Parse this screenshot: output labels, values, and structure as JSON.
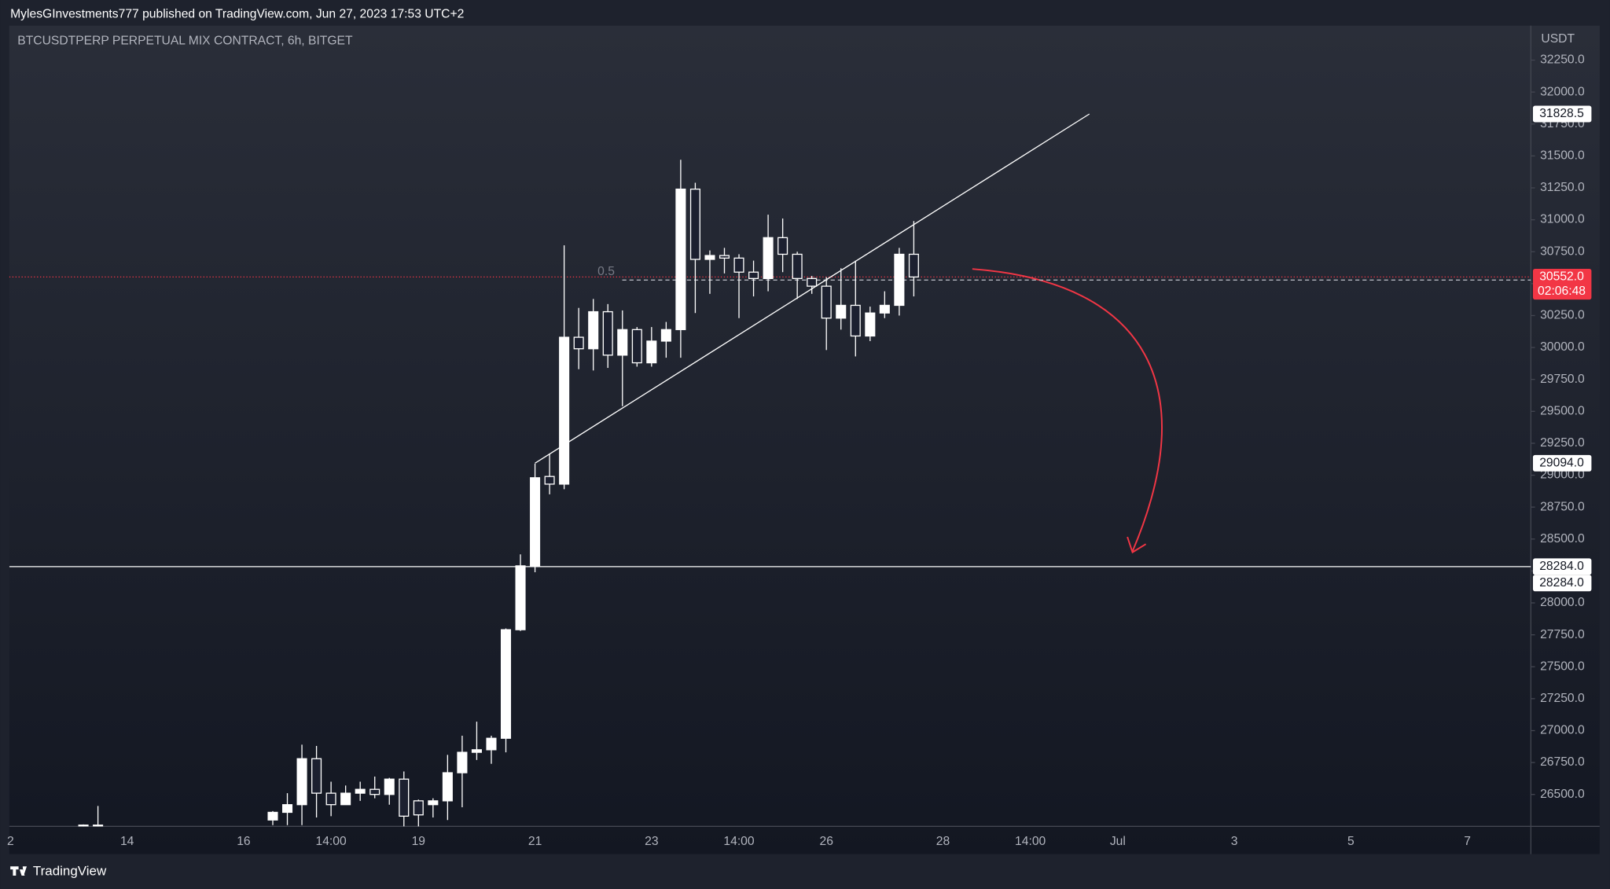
{
  "header": "MylesGInvestments777 published on TradingView.com, Jun 27, 2023 17:53 UTC+2",
  "footer": "TradingView",
  "chart_data": {
    "type": "candlestick",
    "title": "BTCUSDTPERP PERPETUAL MIX CONTRACT, 6h, BITGET",
    "currency": "USDT",
    "color": "#ffffff",
    "categories": [
      "2",
      null,
      null,
      null,
      null,
      null,
      null,
      null,
      "14",
      null,
      null,
      null,
      null,
      null,
      null,
      null,
      "16",
      null,
      null,
      null,
      null,
      null,
      "14:00",
      null,
      null,
      null,
      null,
      null,
      "19",
      null,
      null,
      null,
      null,
      null,
      null,
      null,
      "21",
      null,
      null,
      null,
      null,
      null,
      null,
      null,
      "23",
      null,
      null,
      null,
      null,
      null,
      "14:00",
      null,
      null,
      null,
      null,
      null,
      "26",
      null,
      null,
      null,
      null,
      null,
      null,
      null,
      "28",
      null,
      null,
      null,
      null,
      null,
      "14:00",
      null,
      null,
      null,
      null,
      null,
      "Jul",
      null,
      null,
      null,
      null,
      null,
      null,
      null,
      "3",
      null,
      null,
      null,
      null,
      null,
      null,
      null,
      "5",
      null,
      null,
      null,
      null,
      null,
      null,
      null,
      "7",
      null,
      null,
      null,
      null
    ],
    "open": [
      null,
      null,
      null,
      null,
      null,
      26255,
      26255,
      null,
      null,
      null,
      null,
      null,
      null,
      null,
      null,
      null,
      null,
      null,
      26300,
      26360,
      26420,
      26780,
      26510,
      26420,
      26510,
      26540,
      26500,
      26620,
      26450,
      26420,
      26450,
      26670,
      26830,
      26850,
      26940,
      27790,
      28290,
      28990,
      28930,
      30080,
      29990,
      30280,
      29940,
      30140,
      29880,
      30050,
      30140,
      31240,
      30690,
      30720,
      30700,
      30590,
      30540,
      30860,
      30730,
      30540,
      30480,
      30230,
      30330,
      30090,
      30270,
      30330,
      30730,
      null,
      null,
      null,
      null,
      null,
      null,
      null,
      null,
      null,
      null,
      null,
      null,
      null,
      null,
      null,
      null,
      null,
      null,
      null,
      null,
      null,
      null,
      null,
      null,
      null,
      null,
      null,
      null,
      null,
      null,
      null,
      null,
      null,
      null,
      null,
      null,
      null,
      null,
      null,
      null,
      null,
      null
    ],
    "high": [
      null,
      null,
      null,
      null,
      null,
      26265,
      26410,
      null,
      null,
      null,
      null,
      null,
      null,
      null,
      null,
      null,
      null,
      null,
      26370,
      26510,
      26890,
      26880,
      26600,
      26570,
      26600,
      26640,
      26630,
      26680,
      26460,
      26470,
      26810,
      26960,
      27070,
      26960,
      27800,
      28380,
      29090,
      29170,
      30800,
      30310,
      30380,
      30340,
      30290,
      30160,
      30160,
      30200,
      31470,
      31290,
      30760,
      30780,
      30730,
      30680,
      31040,
      31010,
      30750,
      30560,
      30550,
      30620,
      30680,
      30320,
      30440,
      30780,
      30990,
      null,
      null,
      null,
      null,
      null,
      null,
      null,
      null,
      null,
      null,
      null,
      null,
      null,
      null,
      null,
      null,
      null,
      null,
      null,
      null,
      null,
      null,
      null,
      null,
      null,
      null,
      null,
      null,
      null,
      null,
      null,
      null,
      null,
      null,
      null,
      null,
      null,
      null,
      null,
      null,
      null,
      null
    ],
    "low": [
      null,
      null,
      null,
      null,
      null,
      26250,
      26250,
      null,
      null,
      null,
      null,
      null,
      null,
      null,
      null,
      null,
      null,
      null,
      26260,
      26260,
      26260,
      26320,
      26330,
      26420,
      26450,
      26470,
      26420,
      26250,
      26250,
      26320,
      26300,
      26400,
      26770,
      26740,
      26830,
      27780,
      28240,
      28850,
      28890,
      29830,
      29820,
      29840,
      29540,
      29850,
      29850,
      29920,
      29920,
      30270,
      30420,
      30580,
      30230,
      30400,
      30440,
      30590,
      30380,
      30420,
      29980,
      30140,
      29930,
      30050,
      30230,
      30250,
      30400,
      null,
      null,
      null,
      null,
      null,
      null,
      null,
      null,
      null,
      null,
      null,
      null,
      null,
      null,
      null,
      null,
      null,
      null,
      null,
      null,
      null,
      null,
      null,
      null,
      null,
      null,
      null,
      null,
      null,
      null,
      null,
      null,
      null,
      null,
      null,
      null,
      null,
      null,
      null,
      null,
      null,
      null
    ],
    "close": [
      null,
      null,
      null,
      null,
      null,
      26260,
      26260,
      null,
      null,
      null,
      null,
      null,
      null,
      null,
      null,
      null,
      null,
      null,
      26360,
      26420,
      26780,
      26510,
      26420,
      26510,
      26540,
      26500,
      26620,
      26330,
      26340,
      26450,
      26670,
      26830,
      26850,
      26940,
      27790,
      28290,
      28980,
      28930,
      30080,
      29990,
      30280,
      29940,
      30140,
      29880,
      30050,
      30140,
      31240,
      30690,
      30720,
      30700,
      30590,
      30540,
      30860,
      30730,
      30540,
      30480,
      30230,
      30330,
      30090,
      30270,
      30330,
      30730,
      30552,
      null,
      null,
      null,
      null,
      null,
      null,
      null,
      null,
      null,
      null,
      null,
      null,
      null,
      null,
      null,
      null,
      null,
      null,
      null,
      null,
      null,
      null,
      null,
      null,
      null,
      null,
      null,
      null,
      null,
      null,
      null,
      null,
      null,
      null,
      null,
      null,
      null,
      null,
      null,
      null,
      null,
      null
    ],
    "ylim": [
      26250,
      32520
    ],
    "yticks": [
      {
        "value": 26500,
        "label": "26500.0"
      },
      {
        "value": 26750,
        "label": "26750.0"
      },
      {
        "value": 27000,
        "label": "27000.0"
      },
      {
        "value": 27250,
        "label": "27250.0"
      },
      {
        "value": 27500,
        "label": "27500.0"
      },
      {
        "value": 27750,
        "label": "27750.0"
      },
      {
        "value": 28000,
        "label": "28000.0"
      },
      {
        "value": 28250,
        "label": "28250.0"
      },
      {
        "value": 28500,
        "label": "28500.0"
      },
      {
        "value": 28750,
        "label": "28750.0"
      },
      {
        "value": 29000,
        "label": "29000.0"
      },
      {
        "value": 29250,
        "label": "29250.0"
      },
      {
        "value": 29500,
        "label": "29500.0"
      },
      {
        "value": 29750,
        "label": "29750.0"
      },
      {
        "value": 30000,
        "label": "30000.0"
      },
      {
        "value": 30250,
        "label": "30250.0"
      },
      {
        "value": 30500,
        "label": "30500.0"
      },
      {
        "value": 30750,
        "label": "30750.0"
      },
      {
        "value": 31000,
        "label": "31000.0"
      },
      {
        "value": 31250,
        "label": "31250.0"
      },
      {
        "value": 31500,
        "label": "31500.0"
      },
      {
        "value": 31750,
        "label": "31750.0"
      },
      {
        "value": 32000,
        "label": "32000.0"
      },
      {
        "value": 32250,
        "label": "32250.0"
      }
    ],
    "trendline": {
      "start": {
        "value": 29094,
        "label": "29094.0"
      },
      "end": 31828.5
    },
    "level": {
      "value": 28284,
      "label": "28284.0"
    },
    "last_price": {
      "value": 30552,
      "label": "30552.0"
    },
    "countdown": "02:06:48",
    "fib_label": "0.5"
  }
}
